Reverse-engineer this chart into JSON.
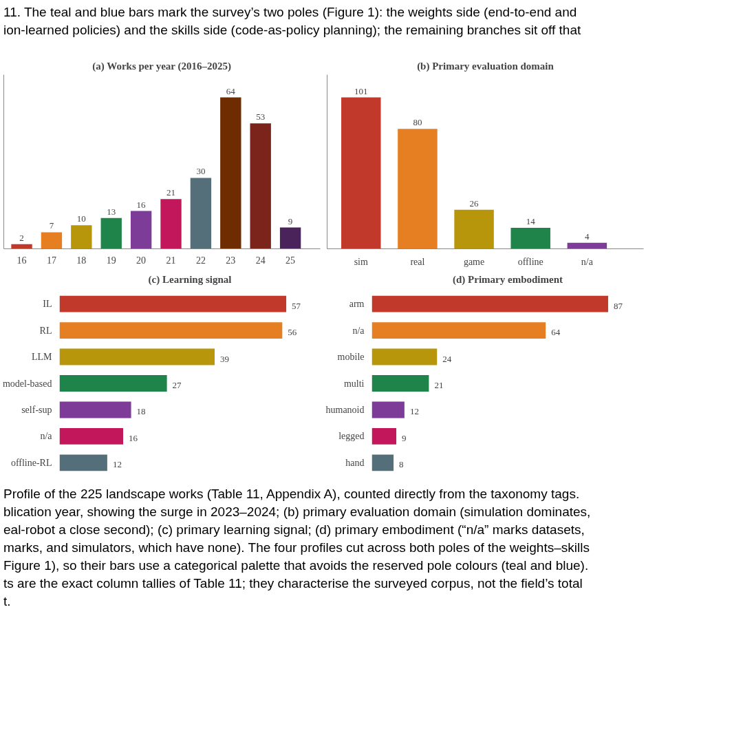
{
  "chart_data": [
    {
      "type": "bar",
      "title": "(a) Works per year (2016–2025)",
      "categories": [
        "16",
        "17",
        "18",
        "19",
        "20",
        "21",
        "22",
        "23",
        "24",
        "25"
      ],
      "values": [
        2,
        7,
        10,
        13,
        16,
        21,
        30,
        64,
        53,
        9
      ],
      "colors": [
        "#c0392b",
        "#e67e22",
        "#b8960c",
        "#1e8449",
        "#7d3c98",
        "#c2185b",
        "#546e7a",
        "#6e2c00",
        "#7b241c",
        "#4a235a"
      ],
      "data_labels": true,
      "annotations": [
        "11. The teal and blue bars mark the survey’s two poles (Figure 1): the weights side (end-to-end and",
        "ion-learned policies) and the skills side (code-as-policy planning); the remaining branches sit off that"
      ]
    },
    {
      "type": "bar",
      "title": "(b) Primary evaluation domain",
      "categories": [
        "sim",
        "real",
        "game",
        "offline",
        "n/a"
      ],
      "values": [
        101,
        80,
        26,
        14,
        4
      ],
      "colors": [
        "#c0392b",
        "#e67e22",
        "#b8960c",
        "#1e8449",
        "#7d3c98"
      ],
      "data_labels": true
    },
    {
      "type": "bar",
      "orientation": "horizontal",
      "title": "(c) Learning signal",
      "categories": [
        "IL",
        "RL",
        "LLM",
        "model-based",
        "self-sup",
        "n/a",
        "offline-RL"
      ],
      "values": [
        57,
        56,
        39,
        27,
        18,
        16,
        12
      ],
      "colors": [
        "#c0392b",
        "#e67e22",
        "#b8960c",
        "#1e8449",
        "#7d3c98",
        "#c2185b",
        "#546e7a"
      ],
      "data_labels": true
    },
    {
      "type": "bar",
      "orientation": "horizontal",
      "title": "(d) Primary embodiment",
      "categories": [
        "arm",
        "n/a",
        "mobile",
        "multi",
        "humanoid",
        "legged",
        "hand"
      ],
      "values": [
        87,
        64,
        24,
        21,
        12,
        9,
        8
      ],
      "colors": [
        "#c0392b",
        "#e67e22",
        "#b8960c",
        "#1e8449",
        "#7d3c98",
        "#c2185b",
        "#546e7a"
      ],
      "data_labels": true,
      "annotations": [
        "Profile of the 225 landscape works (Table 11, Appendix A), counted directly from the taxonomy tags.",
        "blication year, showing the surge in 2023–2024; (b) primary evaluation domain (simulation dominates,",
        "eal-robot a close second); (c) primary learning signal; (d) primary embodiment (“n/a” marks datasets,",
        "marks, and simulators, which have none). The four profiles cut across both poles of the weights–skills",
        "Figure 1), so their bars use a categorical palette that avoids the reserved pole colours (teal and blue).",
        "ts are the exact column tallies of Table 11; they characterise the surveyed corpus, not the field’s total",
        "t."
      ]
    }
  ]
}
